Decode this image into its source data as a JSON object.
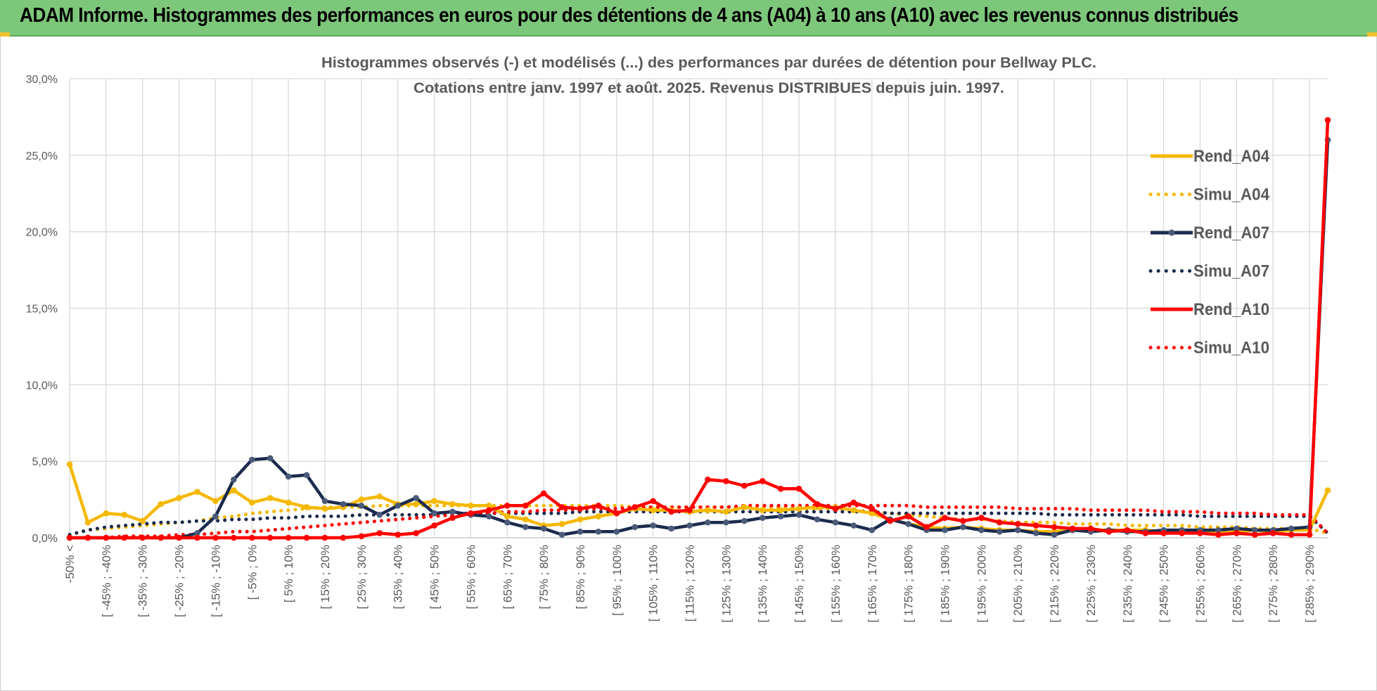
{
  "banner": {
    "title": "ADAM Informe. Histogrammes des performances en euros pour des détentions de 4 ans (A04) à 10 ans (A10) avec les revenus connus distribués",
    "background": "#7dc77b"
  },
  "chart_data": {
    "type": "line",
    "title_line1": "Histogrammes observés (-) et modélisés (...) des performances par durées de détention pour Bellway PLC.",
    "title_line2": "Cotations entre janv. 1997 et août. 2025. Revenus DISTRIBUES depuis juin. 1997.",
    "xlabel": "",
    "ylabel": "",
    "ylim": [
      0,
      30
    ],
    "yticks": [
      "0,0%",
      "5,0%",
      "10,0%",
      "15,0%",
      "20,0%",
      "25,0%",
      "30,0%"
    ],
    "grid": true,
    "legend_position": "right",
    "x_tick_labels": [
      "-50% <",
      "[ -45% ; -40%",
      "[ -35% ; -30%",
      "[ -25% ; -20%",
      "[ -15% ; -10%",
      "[ -5% ; 0%",
      "[ 5% ; 10%",
      "[ 15% ; 20%",
      "[ 25% ; 30%",
      "[ 35% ; 40%",
      "[ 45% ; 50%",
      "[ 55% ; 60%",
      "[ 65% ; 70%",
      "[ 75% ; 80%",
      "[ 85% ; 90%",
      "[ 95% ; 100%",
      "[ 105% ; 110%",
      "[ 115% ; 120%",
      "[ 125% ; 130%",
      "[ 135% ; 140%",
      "[ 145% ; 150%",
      "[ 155% ; 160%",
      "[ 165% ; 170%",
      "[ 175% ; 180%",
      "[ 185% ; 190%",
      "[ 195% ; 200%",
      "[ 205% ; 210%",
      "[ 215% ; 220%",
      "[ 225% ; 230%",
      "[ 235% ; 240%",
      "[ 245% ; 250%",
      "[ 255% ; 260%",
      "[ 265% ; 270%",
      "[ 275% ; 280%",
      "[ 285% ; 290%"
    ],
    "n_points": 70,
    "series": [
      {
        "name": "Rend_A04",
        "color": "#f5b800",
        "style": "solid",
        "values": [
          4.8,
          1.0,
          1.6,
          1.5,
          1.1,
          2.2,
          2.6,
          3.0,
          2.4,
          3.1,
          2.3,
          2.6,
          2.3,
          2.0,
          1.9,
          2.0,
          2.5,
          2.7,
          2.2,
          2.2,
          2.4,
          2.2,
          2.1,
          2.1,
          1.4,
          1.2,
          0.8,
          0.9,
          1.2,
          1.4,
          1.6,
          1.9,
          1.8,
          1.8,
          1.7,
          1.8,
          1.7,
          2.0,
          1.8,
          1.8,
          1.9,
          2.0,
          2.0,
          1.8,
          1.6,
          1.2,
          0.9,
          0.7,
          0.6,
          0.7,
          0.6,
          0.5,
          0.5,
          0.4,
          0.4,
          0.5,
          0.5,
          0.5,
          0.5,
          0.5,
          0.4,
          0.5,
          0.4,
          0.4,
          0.4,
          0.5,
          0.4,
          0.5,
          0.5,
          3.1
        ]
      },
      {
        "name": "Simu_A04",
        "color": "#f5b800",
        "style": "dotted",
        "values": [
          0.2,
          0.5,
          0.6,
          0.7,
          0.8,
          0.9,
          1.0,
          1.1,
          1.3,
          1.4,
          1.6,
          1.7,
          1.8,
          1.9,
          2.0,
          2.0,
          2.0,
          2.1,
          2.1,
          2.1,
          2.1,
          2.1,
          2.1,
          2.1,
          2.1,
          2.1,
          2.1,
          2.1,
          2.1,
          2.1,
          2.1,
          2.0,
          2.0,
          2.0,
          2.0,
          2.0,
          2.0,
          2.0,
          2.0,
          2.0,
          1.9,
          1.9,
          1.9,
          1.8,
          1.7,
          1.6,
          1.5,
          1.4,
          1.3,
          1.2,
          1.2,
          1.1,
          1.0,
          1.0,
          1.0,
          0.9,
          0.9,
          0.9,
          0.8,
          0.8,
          0.8,
          0.8,
          0.7,
          0.7,
          0.7,
          0.6,
          0.6,
          0.6,
          0.6,
          0.3
        ]
      },
      {
        "name": "Rend_A07",
        "color": "#1b2a4e",
        "style": "solid",
        "values": [
          0.0,
          0.0,
          0.0,
          0.0,
          0.0,
          0.0,
          0.0,
          0.3,
          1.4,
          3.8,
          5.1,
          5.2,
          4.0,
          4.1,
          2.4,
          2.2,
          2.1,
          1.5,
          2.1,
          2.6,
          1.6,
          1.7,
          1.5,
          1.4,
          1.0,
          0.7,
          0.6,
          0.2,
          0.4,
          0.4,
          0.4,
          0.7,
          0.8,
          0.6,
          0.8,
          1.0,
          1.0,
          1.1,
          1.3,
          1.4,
          1.5,
          1.2,
          1.0,
          0.8,
          0.5,
          1.2,
          0.9,
          0.5,
          0.5,
          0.7,
          0.5,
          0.4,
          0.5,
          0.3,
          0.2,
          0.5,
          0.4,
          0.5,
          0.4,
          0.4,
          0.5,
          0.5,
          0.5,
          0.5,
          0.6,
          0.5,
          0.5,
          0.6,
          0.7,
          26.0
        ]
      },
      {
        "name": "Simu_A07",
        "color": "#1b2a4e",
        "style": "dotted",
        "values": [
          0.2,
          0.5,
          0.7,
          0.8,
          0.9,
          1.0,
          1.0,
          1.1,
          1.1,
          1.2,
          1.2,
          1.3,
          1.3,
          1.4,
          1.4,
          1.4,
          1.5,
          1.5,
          1.5,
          1.5,
          1.5,
          1.6,
          1.6,
          1.6,
          1.6,
          1.6,
          1.6,
          1.6,
          1.7,
          1.7,
          1.7,
          1.7,
          1.7,
          1.7,
          1.7,
          1.7,
          1.7,
          1.7,
          1.7,
          1.7,
          1.7,
          1.7,
          1.7,
          1.7,
          1.7,
          1.6,
          1.6,
          1.6,
          1.6,
          1.6,
          1.6,
          1.6,
          1.6,
          1.6,
          1.5,
          1.5,
          1.5,
          1.5,
          1.5,
          1.5,
          1.5,
          1.5,
          1.4,
          1.4,
          1.4,
          1.4,
          1.4,
          1.4,
          1.4,
          0.3
        ]
      },
      {
        "name": "Rend_A10",
        "color": "#ff0000",
        "style": "solid",
        "values": [
          0.0,
          0.0,
          0.0,
          0.0,
          0.0,
          0.0,
          0.0,
          0.0,
          0.0,
          0.0,
          0.0,
          0.0,
          0.0,
          0.0,
          0.0,
          0.0,
          0.1,
          0.3,
          0.2,
          0.3,
          0.8,
          1.3,
          1.6,
          1.8,
          2.1,
          2.1,
          2.9,
          2.0,
          1.9,
          2.1,
          1.6,
          2.0,
          2.4,
          1.7,
          1.8,
          3.8,
          3.7,
          3.4,
          3.7,
          3.2,
          3.2,
          2.2,
          1.9,
          2.3,
          1.9,
          1.1,
          1.4,
          0.7,
          1.3,
          1.1,
          1.3,
          1.0,
          0.9,
          0.8,
          0.7,
          0.6,
          0.6,
          0.4,
          0.5,
          0.3,
          0.3,
          0.3,
          0.3,
          0.2,
          0.3,
          0.2,
          0.3,
          0.2,
          0.2,
          27.3
        ]
      },
      {
        "name": "Simu_A10",
        "color": "#ff0000",
        "style": "dotted",
        "values": [
          0.0,
          0.0,
          0.0,
          0.1,
          0.1,
          0.1,
          0.2,
          0.2,
          0.3,
          0.4,
          0.4,
          0.5,
          0.6,
          0.7,
          0.8,
          0.9,
          1.0,
          1.1,
          1.2,
          1.3,
          1.4,
          1.5,
          1.6,
          1.6,
          1.7,
          1.7,
          1.8,
          1.8,
          1.9,
          1.9,
          1.9,
          2.0,
          2.0,
          2.0,
          2.0,
          2.0,
          2.0,
          2.1,
          2.1,
          2.1,
          2.1,
          2.1,
          2.1,
          2.1,
          2.1,
          2.1,
          2.1,
          2.0,
          2.0,
          2.0,
          2.0,
          2.0,
          1.9,
          1.9,
          1.9,
          1.9,
          1.8,
          1.8,
          1.8,
          1.8,
          1.7,
          1.7,
          1.7,
          1.6,
          1.6,
          1.6,
          1.5,
          1.5,
          1.5,
          0.3
        ]
      }
    ]
  }
}
